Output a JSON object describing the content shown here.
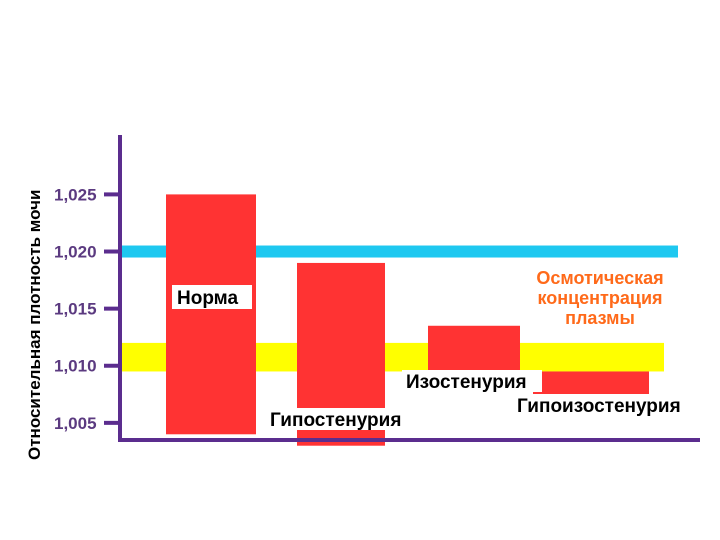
{
  "chart_data": {
    "type": "bar",
    "ylabel": "Относительная плотность мочи",
    "ticks": [
      "1,025",
      "1,020",
      "1,015",
      "1,010",
      "1,005"
    ],
    "tick_values": [
      1.025,
      1.02,
      1.015,
      1.01,
      1.005
    ],
    "ylim": [
      1.0035,
      1.0302
    ],
    "categories": [
      "Норма",
      "Гипостенурия",
      "Изостенурия",
      "Гипоизостенурия"
    ],
    "bars": [
      {
        "name": "Норма",
        "low": 1.004,
        "high": 1.025
      },
      {
        "name": "Гипостенурия",
        "low": 1.003,
        "high": 1.019
      },
      {
        "name": "Изостенурия",
        "low": 1.0095,
        "high": 1.0135
      },
      {
        "name": "Гипоизостенурия",
        "low": 1.0075,
        "high": 1.0095
      }
    ],
    "reference_lines": [
      {
        "value": 1.02,
        "color": "#1ec8f0"
      }
    ],
    "reference_band": {
      "low": 1.0095,
      "high": 1.012,
      "color": "#ffff00",
      "label_lines": [
        "Осмотическая",
        "концентрация",
        "плазмы"
      ],
      "label_color": "#ff6a1a"
    },
    "colors": {
      "bar": "#ff3333",
      "axis": "#5b2d8e",
      "tick_text": "#5b3a80"
    }
  }
}
